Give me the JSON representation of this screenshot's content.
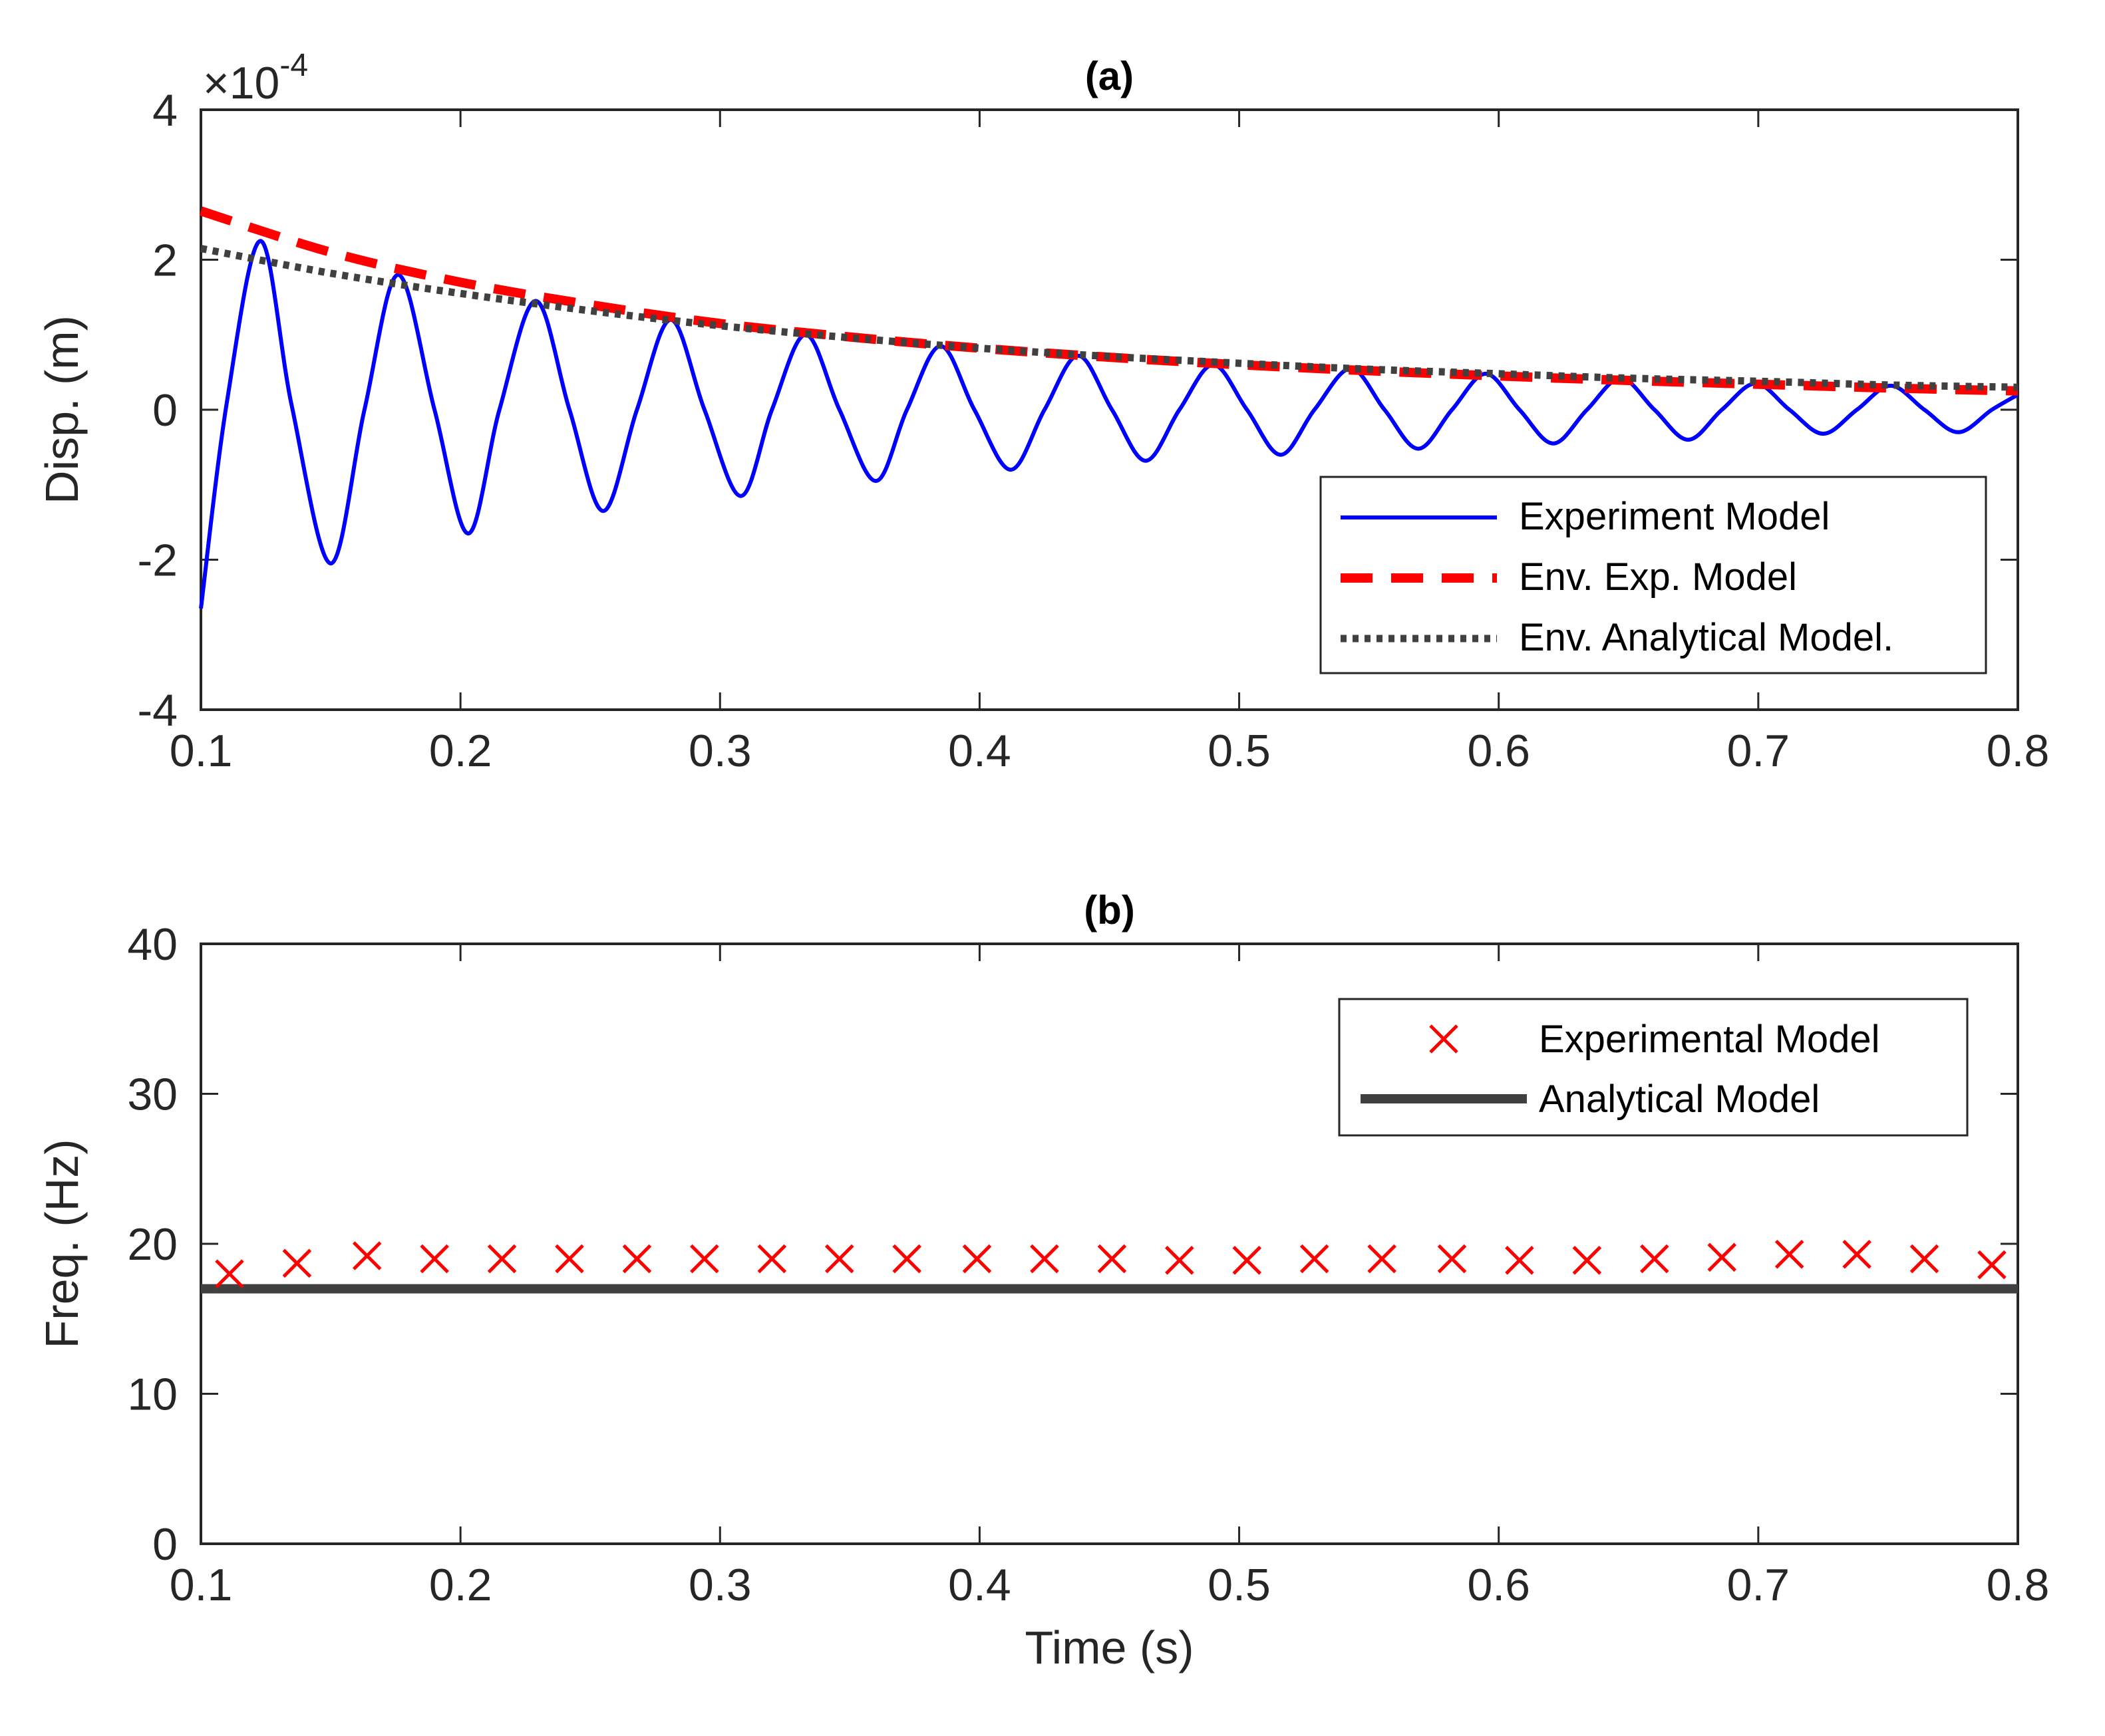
{
  "chart_data": [
    {
      "type": "line",
      "title": "(a)",
      "xlabel": "",
      "ylabel": "Disp. (m)",
      "xlim": [
        0.1,
        0.8
      ],
      "ylim": [
        -4,
        4
      ],
      "y_multiplier_label": "10",
      "y_multiplier_prefix": "×",
      "y_multiplier_exponent": "-4",
      "x_ticks": [
        "0.1",
        "0.2",
        "0.3",
        "0.4",
        "0.5",
        "0.6",
        "0.7",
        "0.8"
      ],
      "y_ticks": [
        "-4",
        "-2",
        "0",
        "2",
        "4"
      ],
      "grid": false,
      "legend_position": "bottom-right",
      "series": [
        {
          "name": "Experiment Model",
          "style": "solid",
          "color": "#0000ff",
          "x": [
            0.1,
            0.11,
            0.123,
            0.135,
            0.15,
            0.163,
            0.176,
            0.19,
            0.203,
            0.215,
            0.229,
            0.242,
            0.255,
            0.268,
            0.281,
            0.294,
            0.308,
            0.32,
            0.333,
            0.346,
            0.36,
            0.372,
            0.385,
            0.398,
            0.412,
            0.425,
            0.438,
            0.451,
            0.464,
            0.477,
            0.49,
            0.503,
            0.516,
            0.529,
            0.543,
            0.556,
            0.569,
            0.582,
            0.595,
            0.608,
            0.621,
            0.634,
            0.647,
            0.66,
            0.673,
            0.686,
            0.699,
            0.712,
            0.725,
            0.738,
            0.751,
            0.764,
            0.777,
            0.79,
            0.8
          ],
          "y": [
            -2.65,
            0.1,
            2.25,
            0.05,
            -2.05,
            0.0,
            1.8,
            0.0,
            -1.65,
            0.0,
            1.45,
            0.0,
            -1.35,
            0.0,
            1.2,
            0.0,
            -1.15,
            0.0,
            1.0,
            0.0,
            -0.95,
            0.0,
            0.85,
            0.0,
            -0.8,
            0.0,
            0.72,
            0.0,
            -0.68,
            0.0,
            0.6,
            0.0,
            -0.6,
            0.0,
            0.55,
            0.0,
            -0.52,
            0.0,
            0.48,
            0.0,
            -0.45,
            0.0,
            0.42,
            0.0,
            -0.4,
            0.0,
            0.35,
            0.0,
            -0.32,
            0.0,
            0.32,
            0.0,
            -0.3,
            0.0,
            0.2
          ]
        },
        {
          "name": "Env. Exp. Model",
          "style": "dashed",
          "color": "#ff0000",
          "x": [
            0.1,
            0.15,
            0.2,
            0.25,
            0.3,
            0.35,
            0.4,
            0.45,
            0.5,
            0.55,
            0.6,
            0.65,
            0.7,
            0.75,
            0.8
          ],
          "y": [
            2.65,
            2.1,
            1.7,
            1.4,
            1.15,
            0.97,
            0.82,
            0.7,
            0.6,
            0.52,
            0.45,
            0.39,
            0.34,
            0.29,
            0.25
          ]
        },
        {
          "name": "Env. Analytical Model.",
          "style": "dotted",
          "color": "#404040",
          "x": [
            0.1,
            0.15,
            0.2,
            0.25,
            0.3,
            0.35,
            0.4,
            0.45,
            0.5,
            0.55,
            0.6,
            0.65,
            0.7,
            0.75,
            0.8
          ],
          "y": [
            2.15,
            1.82,
            1.55,
            1.32,
            1.12,
            0.96,
            0.82,
            0.71,
            0.62,
            0.54,
            0.48,
            0.42,
            0.38,
            0.33,
            0.3
          ]
        }
      ]
    },
    {
      "type": "scatter",
      "title": "(b)",
      "xlabel": "Time (s)",
      "ylabel": "Freq. (Hz)",
      "xlim": [
        0.1,
        0.8
      ],
      "ylim": [
        0,
        40
      ],
      "x_ticks": [
        "0.1",
        "0.2",
        "0.3",
        "0.4",
        "0.5",
        "0.6",
        "0.7",
        "0.8"
      ],
      "y_ticks": [
        "0",
        "10",
        "20",
        "30",
        "40"
      ],
      "grid": false,
      "legend_position": "top-right",
      "series": [
        {
          "name": "Experimental Model",
          "marker": "x",
          "color": "#ff0000",
          "x": [
            0.111,
            0.137,
            0.164,
            0.19,
            0.216,
            0.242,
            0.268,
            0.294,
            0.32,
            0.346,
            0.372,
            0.399,
            0.425,
            0.451,
            0.477,
            0.503,
            0.529,
            0.555,
            0.582,
            0.608,
            0.634,
            0.66,
            0.686,
            0.712,
            0.738,
            0.764,
            0.79
          ],
          "y": [
            18.0,
            18.7,
            19.2,
            19.0,
            19.0,
            19.0,
            19.0,
            19.0,
            19.0,
            19.0,
            19.0,
            19.0,
            19.0,
            19.0,
            18.9,
            18.9,
            19.0,
            19.0,
            19.0,
            18.9,
            18.9,
            19.0,
            19.1,
            19.3,
            19.3,
            19.0,
            18.6
          ]
        },
        {
          "name": "Analytical Model",
          "style": "solid",
          "color": "#404040",
          "x": [
            0.1,
            0.8
          ],
          "y": [
            17.0,
            17.0
          ]
        }
      ]
    }
  ]
}
